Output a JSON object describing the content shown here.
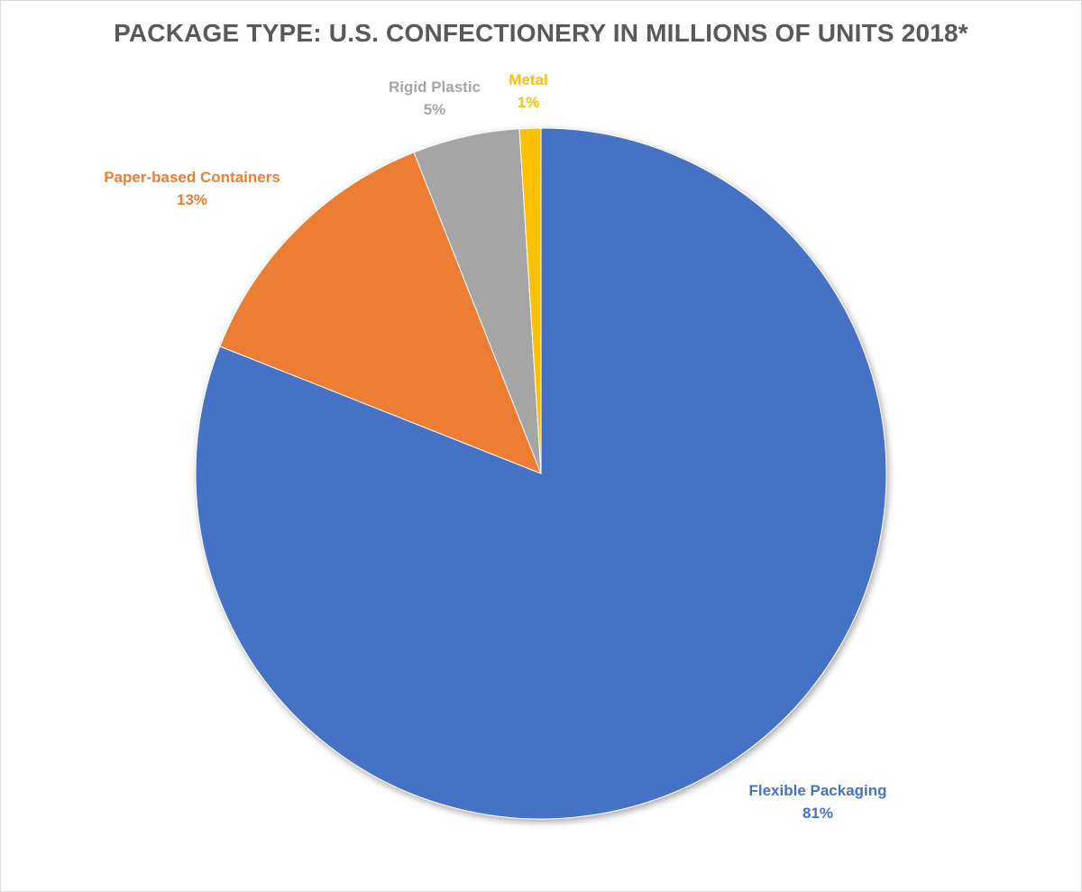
{
  "chart_data": {
    "type": "pie",
    "title": "PACKAGE TYPE: U.S. CONFECTIONERY IN MILLIONS OF UNITS 2018*",
    "start_angle_deg": 0,
    "direction": "clockwise",
    "slices": [
      {
        "label": "Flexible Packaging",
        "value": 81,
        "value_label": "81%",
        "color": "#4472C4",
        "label_color": "#4472C4"
      },
      {
        "label": "Paper-based Containers",
        "value": 13,
        "value_label": "13%",
        "color": "#ED7D31",
        "label_color": "#ED7D31"
      },
      {
        "label": "Rigid Plastic",
        "value": 5,
        "value_label": "5%",
        "color": "#A5A5A5",
        "label_color": "#A5A5A5"
      },
      {
        "label": "Metal",
        "value": 1,
        "value_label": "1%",
        "color": "#FFC000",
        "label_color": "#FFC000"
      }
    ],
    "legend": "none",
    "data_labels": "outside"
  }
}
